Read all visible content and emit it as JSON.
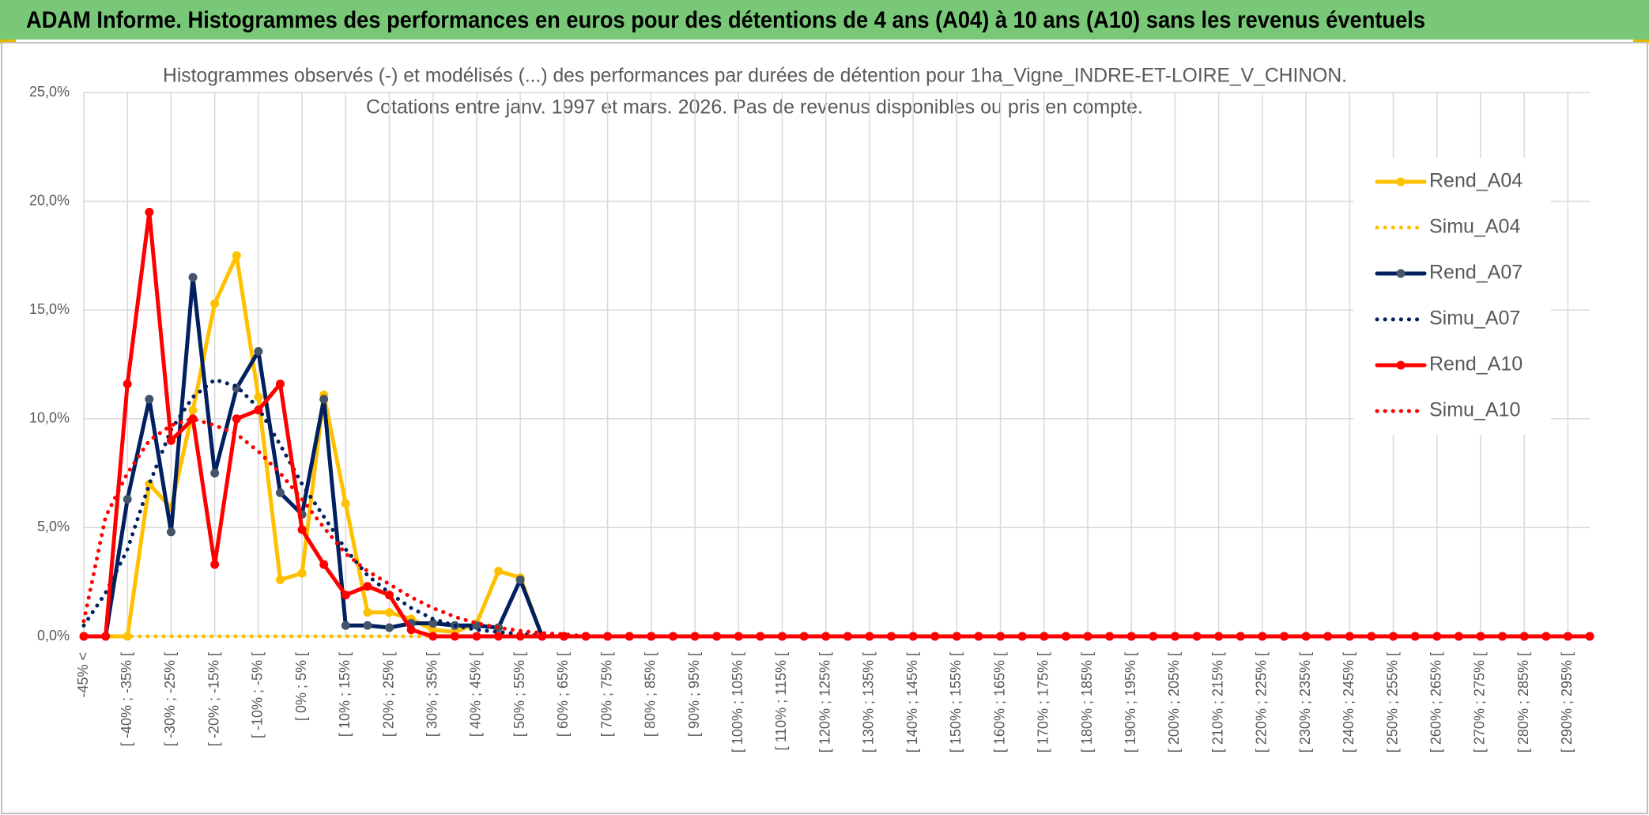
{
  "header": {
    "title": "ADAM Informe. Histogrammes des performances en euros pour des détentions de 4 ans (A04) à 10 ans (A10) sans les revenus éventuels"
  },
  "chart_data": {
    "type": "line",
    "title": "Histogrammes observés (-) et modélisés (...) des performances par durées de détention pour 1ha_Vigne_INDRE-ET-LOIRE_V_CHINON.",
    "subtitle": "Cotations entre janv. 1997 et mars. 2026. Pas de revenus disponibles ou pris en compte.",
    "categories": [
      "-45% <",
      null,
      "[ -40% ; -35% [",
      null,
      "[ -30% ; -25% [",
      null,
      "[ -20% ; -15% [",
      null,
      "[ -10% ; -5% [",
      null,
      "[ 0% ; 5% [",
      null,
      "[ 10% ; 15% [",
      null,
      "[ 20% ; 25% [",
      null,
      "[ 30% ; 35% [",
      null,
      "[ 40% ; 45% [",
      null,
      "[ 50% ; 55% [",
      null,
      "[ 60% ; 65% [",
      null,
      "[ 70% ; 75% [",
      null,
      "[ 80% ; 85% [",
      null,
      "[ 90% ; 95% [",
      null,
      "[ 100% ; 105% [",
      null,
      "[ 110% ; 115% [",
      null,
      "[ 120% ; 125% [",
      null,
      "[ 130% ; 135% [",
      null,
      "[ 140% ; 145% [",
      null,
      "[ 150% ; 155% [",
      null,
      "[ 160% ; 165% [",
      null,
      "[ 170% ; 175% [",
      null,
      "[ 180% ; 185% [",
      null,
      "[ 190% ; 195% [",
      null,
      "[ 200% ; 205% [",
      null,
      "[ 210% ; 215% [",
      null,
      "[ 220% ; 225% [",
      null,
      "[ 230% ; 235% [",
      null,
      "[ 240% ; 245% [",
      null,
      "[ 250% ; 255% [",
      null,
      "[ 260% ; 265% [",
      null,
      "[ 270% ; 275% [",
      null,
      "[ 280% ; 285% [",
      null,
      "[ 290% ; 295% [",
      null
    ],
    "series": [
      {
        "name": "Rend_A04",
        "color": "#FFC000",
        "style": "solid",
        "values": [
          0,
          0,
          0,
          7.0,
          5.9,
          10.4,
          15.3,
          17.5,
          11.0,
          2.6,
          2.9,
          11.1,
          6.1,
          1.1,
          1.1,
          0.8,
          0.3,
          0.2,
          0.6,
          3.0,
          2.7,
          0,
          0,
          0,
          0,
          0,
          0,
          0,
          0,
          0,
          0,
          0,
          0,
          0,
          0,
          0,
          0,
          0,
          0,
          0,
          0,
          0,
          0,
          0,
          0,
          0,
          0,
          0,
          0,
          0,
          0,
          0,
          0,
          0,
          0,
          0,
          0,
          0,
          0,
          0,
          0,
          0,
          0,
          0,
          0,
          0,
          0,
          0,
          0,
          0
        ]
      },
      {
        "name": "Simu_A04",
        "color": "#FFC000",
        "style": "dotted",
        "values": [
          0,
          0,
          0,
          0,
          0,
          0,
          0,
          0,
          0,
          0,
          0,
          0,
          0,
          0,
          0,
          0,
          0,
          0,
          0,
          0,
          0,
          0,
          0,
          0,
          0,
          0,
          0,
          0,
          0,
          0,
          0,
          0,
          0,
          0,
          0,
          0,
          0,
          0,
          0,
          0,
          0,
          0,
          0,
          0,
          0,
          0,
          0,
          0,
          0,
          0,
          0,
          0,
          0,
          0,
          0,
          0,
          0,
          0,
          0,
          0,
          0,
          0,
          0,
          0,
          0,
          0,
          0,
          0,
          0,
          0
        ]
      },
      {
        "name": "Rend_A07",
        "color": "#002060",
        "marker_color": "#44546A",
        "style": "solid",
        "values": [
          0,
          0,
          6.3,
          10.9,
          4.8,
          16.5,
          7.5,
          11.4,
          13.1,
          6.6,
          5.6,
          10.9,
          0.5,
          0.5,
          0.4,
          0.6,
          0.6,
          0.5,
          0.5,
          0.4,
          2.6,
          0,
          0,
          0,
          0,
          0,
          0,
          0,
          0,
          0,
          0,
          0,
          0,
          0,
          0,
          0,
          0,
          0,
          0,
          0,
          0,
          0,
          0,
          0,
          0,
          0,
          0,
          0,
          0,
          0,
          0,
          0,
          0,
          0,
          0,
          0,
          0,
          0,
          0,
          0,
          0,
          0,
          0,
          0,
          0,
          0,
          0,
          0,
          0,
          0
        ]
      },
      {
        "name": "Simu_A07",
        "color": "#002060",
        "style": "dotted",
        "values": [
          0.5,
          2,
          4,
          7,
          9.5,
          11,
          11.8,
          11.5,
          10.5,
          8.8,
          7,
          5.5,
          4,
          2.8,
          2,
          1.3,
          0.8,
          0.5,
          0.3,
          0.2,
          0.1,
          0.05,
          0,
          0,
          0,
          0,
          0,
          0,
          0,
          0,
          0,
          0,
          0,
          0,
          0,
          0,
          0,
          0,
          0,
          0,
          0,
          0,
          0,
          0,
          0,
          0,
          0,
          0,
          0,
          0,
          0,
          0,
          0,
          0,
          0,
          0,
          0,
          0,
          0,
          0,
          0,
          0,
          0,
          0,
          0,
          0,
          0,
          0,
          0,
          0
        ]
      },
      {
        "name": "Rend_A10",
        "color": "#FF0000",
        "style": "solid",
        "values": [
          0,
          0,
          11.6,
          19.5,
          9.0,
          10.0,
          3.3,
          10.0,
          10.4,
          11.6,
          4.9,
          3.3,
          1.9,
          2.3,
          1.9,
          0.3,
          0,
          0,
          0,
          0,
          0,
          0,
          0,
          0,
          0,
          0,
          0,
          0,
          0,
          0,
          0,
          0,
          0,
          0,
          0,
          0,
          0,
          0,
          0,
          0,
          0,
          0,
          0,
          0,
          0,
          0,
          0,
          0,
          0,
          0,
          0,
          0,
          0,
          0,
          0,
          0,
          0,
          0,
          0,
          0,
          0,
          0,
          0,
          0,
          0,
          0,
          0,
          0,
          0,
          0
        ]
      },
      {
        "name": "Simu_A10",
        "color": "#FF0000",
        "style": "dotted",
        "values": [
          0.7,
          5.5,
          7.5,
          9,
          9.7,
          10,
          9.7,
          9.3,
          8.5,
          7.5,
          6.3,
          5,
          3.8,
          3,
          2.4,
          1.8,
          1.3,
          0.9,
          0.6,
          0.4,
          0.25,
          0.15,
          0.1,
          0,
          0,
          0,
          0,
          0,
          0,
          0,
          0,
          0,
          0,
          0,
          0,
          0,
          0,
          0,
          0,
          0,
          0,
          0,
          0,
          0,
          0,
          0,
          0,
          0,
          0,
          0,
          0,
          0,
          0,
          0,
          0,
          0,
          0,
          0,
          0,
          0,
          0,
          0,
          0,
          0,
          0,
          0,
          0,
          0,
          0,
          0
        ]
      }
    ],
    "ylim": [
      0,
      25
    ],
    "yticks": [
      {
        "value": 0,
        "label": "0,0%"
      },
      {
        "value": 5,
        "label": "5,0%"
      },
      {
        "value": 10,
        "label": "10,0%"
      },
      {
        "value": 15,
        "label": "15,0%"
      },
      {
        "value": 20,
        "label": "20,0%"
      },
      {
        "value": 25,
        "label": "25,0%"
      }
    ],
    "grid": true,
    "legend": "right"
  }
}
